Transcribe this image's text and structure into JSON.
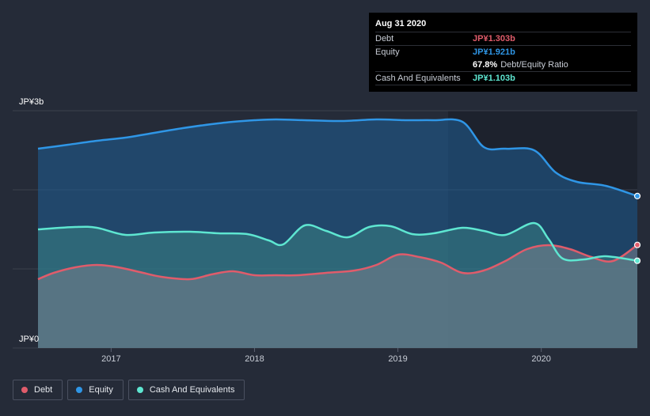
{
  "chart_data": {
    "type": "area",
    "y_tick_labels": [
      "JP¥3b",
      "JP¥0"
    ],
    "x_tick_labels": [
      "2017",
      "2018",
      "2019",
      "2020"
    ],
    "ylim": [
      0,
      3.0
    ],
    "xlim": [
      2016.49,
      2020.67
    ],
    "grid": true,
    "legend_position": "bottom-left",
    "series": [
      {
        "name": "Debt",
        "color": "#e05c6b",
        "points": [
          [
            2016.49,
            0.87
          ],
          [
            2016.6,
            0.95
          ],
          [
            2016.75,
            1.02
          ],
          [
            2016.9,
            1.05
          ],
          [
            2017.05,
            1.02
          ],
          [
            2017.2,
            0.96
          ],
          [
            2017.35,
            0.9
          ],
          [
            2017.55,
            0.87
          ],
          [
            2017.7,
            0.93
          ],
          [
            2017.85,
            0.97
          ],
          [
            2018.0,
            0.92
          ],
          [
            2018.15,
            0.92
          ],
          [
            2018.3,
            0.92
          ],
          [
            2018.5,
            0.95
          ],
          [
            2018.7,
            0.98
          ],
          [
            2018.85,
            1.05
          ],
          [
            2019.0,
            1.18
          ],
          [
            2019.15,
            1.15
          ],
          [
            2019.3,
            1.08
          ],
          [
            2019.45,
            0.95
          ],
          [
            2019.6,
            0.98
          ],
          [
            2019.75,
            1.1
          ],
          [
            2019.9,
            1.25
          ],
          [
            2020.05,
            1.3
          ],
          [
            2020.2,
            1.25
          ],
          [
            2020.35,
            1.15
          ],
          [
            2020.5,
            1.1
          ],
          [
            2020.67,
            1.303
          ]
        ]
      },
      {
        "name": "Equity",
        "color": "#2f96e6",
        "points": [
          [
            2016.49,
            2.52
          ],
          [
            2016.7,
            2.57
          ],
          [
            2016.9,
            2.62
          ],
          [
            2017.1,
            2.66
          ],
          [
            2017.3,
            2.72
          ],
          [
            2017.5,
            2.78
          ],
          [
            2017.7,
            2.83
          ],
          [
            2017.85,
            2.86
          ],
          [
            2018.0,
            2.88
          ],
          [
            2018.15,
            2.89
          ],
          [
            2018.35,
            2.88
          ],
          [
            2018.6,
            2.87
          ],
          [
            2018.85,
            2.89
          ],
          [
            2019.05,
            2.88
          ],
          [
            2019.25,
            2.88
          ],
          [
            2019.45,
            2.86
          ],
          [
            2019.6,
            2.54
          ],
          [
            2019.75,
            2.52
          ],
          [
            2019.95,
            2.5
          ],
          [
            2020.1,
            2.22
          ],
          [
            2020.25,
            2.1
          ],
          [
            2020.45,
            2.05
          ],
          [
            2020.67,
            1.921
          ]
        ]
      },
      {
        "name": "Cash And Equivalents",
        "color": "#5ee6d1",
        "points": [
          [
            2016.49,
            1.5
          ],
          [
            2016.75,
            1.53
          ],
          [
            2016.9,
            1.52
          ],
          [
            2017.1,
            1.43
          ],
          [
            2017.3,
            1.46
          ],
          [
            2017.55,
            1.47
          ],
          [
            2017.75,
            1.45
          ],
          [
            2017.95,
            1.44
          ],
          [
            2018.1,
            1.36
          ],
          [
            2018.2,
            1.31
          ],
          [
            2018.35,
            1.55
          ],
          [
            2018.5,
            1.48
          ],
          [
            2018.65,
            1.4
          ],
          [
            2018.8,
            1.53
          ],
          [
            2018.95,
            1.54
          ],
          [
            2019.1,
            1.44
          ],
          [
            2019.25,
            1.45
          ],
          [
            2019.45,
            1.52
          ],
          [
            2019.6,
            1.48
          ],
          [
            2019.75,
            1.43
          ],
          [
            2019.95,
            1.58
          ],
          [
            2020.05,
            1.38
          ],
          [
            2020.15,
            1.13
          ],
          [
            2020.3,
            1.12
          ],
          [
            2020.45,
            1.16
          ],
          [
            2020.67,
            1.103
          ]
        ]
      }
    ]
  },
  "tooltip": {
    "date": "Aug 31 2020",
    "debt_label": "Debt",
    "debt_value": "JP¥1.303b",
    "equity_label": "Equity",
    "equity_value": "JP¥1.921b",
    "ratio_value": "67.8%",
    "ratio_label": "Debt/Equity Ratio",
    "cash_label": "Cash And Equivalents",
    "cash_value": "JP¥1.103b"
  },
  "legend": {
    "debt": "Debt",
    "equity": "Equity",
    "cash": "Cash And Equivalents"
  },
  "colors": {
    "debt": "#e05c6b",
    "equity": "#2f96e6",
    "cash": "#5ee6d1",
    "background": "#252b38"
  }
}
